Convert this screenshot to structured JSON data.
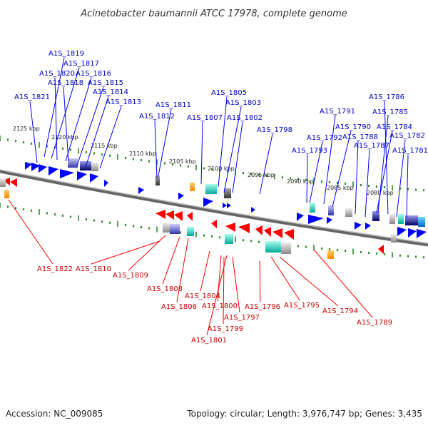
{
  "title": "Acinetobacter baumannii ATCC 17978, complete genome",
  "footer": {
    "accession": "Accession: NC_009085",
    "summary": "Topology: circular; Length: 3,976,747 bp; Genes: 3,435"
  },
  "colors": {
    "forward": "#0000ff",
    "reverse": "#ff0000",
    "forward_label": "#0000cc",
    "reverse_label": "#cc0000",
    "backbone": "#777777",
    "tick": "#2e8b2e"
  },
  "kbp_labels": [
    "2125 kbp",
    "2120 kbp",
    "2115 kbp",
    "2110 kbp",
    "2105 kbp",
    "2100 kbp",
    "2095 kbp",
    "2090 kbp",
    "2085 kbp",
    "2080 kbp"
  ],
  "forward_genes": [
    "A1S_1819",
    "A1S_1817",
    "A1S_1820",
    "A1S_1816",
    "A1S_1818",
    "A1S_1815",
    "A1S_1814",
    "A1S_1821",
    "A1S_1813",
    "A1S_1811",
    "A1S_1812",
    "A1S_1805",
    "A1S_1803",
    "A1S_1807",
    "A1S_1802",
    "A1S_1798",
    "A1S_1791",
    "A1S_1790",
    "A1S_1792",
    "A1S_1788",
    "A1S_1793",
    "A1S_1787",
    "A1S_1786",
    "A1S_1785",
    "A1S_1784",
    "A1S_1782",
    "A1S_1781"
  ],
  "reverse_genes": [
    "A1S_1822",
    "A1S_1810",
    "A1S_1809",
    "A1S_1808",
    "A1S_1806",
    "A1S_1804",
    "A1S_1800",
    "A1S_1799",
    "A1S_1801",
    "A1S_1797",
    "A1S_1796",
    "A1S_1795",
    "A1S_1794",
    "A1S_1789"
  ]
}
